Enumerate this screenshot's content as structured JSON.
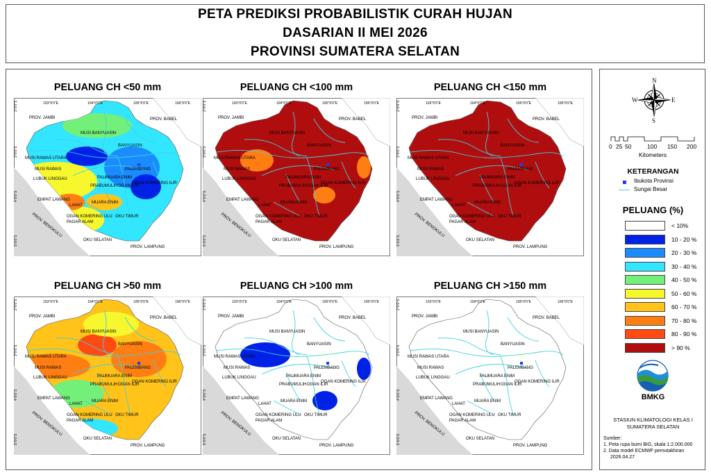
{
  "header": {
    "line1": "PETA PREDIKSI PROBABILISTIK CURAH HUJAN",
    "line2": "DASARIAN II MEI 2026",
    "line3": "PROVINSI SUMATERA SELATAN"
  },
  "map_labels": {
    "lon": [
      "103°0'0\"E",
      "104°0'0\"E",
      "105°0'0\"E",
      "106°0'0\"E"
    ],
    "lat": [
      "2°0'0\"S",
      "3°0'0\"S",
      "4°0'0\"S",
      "5°0'0\"S"
    ],
    "prov_jambi": "PROV. JAMBI",
    "prov_babel": "PROV. BABEL",
    "prov_bengkulu": "PROV. BENGKULU",
    "prov_lampung": "PROV. LAMPUNG",
    "musi_banyuasin": "MUSI BANYUASIN",
    "banyuasin": "BANYUASIN",
    "musi_rawas_utara": "MUSI RAWAS UTARA",
    "musi_rawas": "MUSI RAWAS",
    "palembang": "PALEMBANG",
    "lubuk_linggau": "LUBUK LINGGAU",
    "pali": "PALI",
    "muara_enim_top": "MUARA ENIM",
    "prabumulih": "PRABUMULIH",
    "ogan_ilir": "OGAN ILIR",
    "oki": "OGAN KOMERING ILIR",
    "empat_lawang": "EMPAT LAWANG",
    "lahat": "LAHAT",
    "muara_enim": "MUARA ENIM",
    "oku": "OGAN KOMERING ULU",
    "oku_timur": "OKU TIMUR",
    "pagar_alam": "PAGAR ALAM",
    "oku_selatan": "OKU SELATAN"
  },
  "panels": [
    {
      "title": "PELUANG CH <50 mm",
      "fill_class": "≈ 10-60 %"
    },
    {
      "title": "PELUANG CH <100 mm",
      "fill_class": "> 90 %"
    },
    {
      "title": "PELUANG CH <150 mm",
      "fill_class": "> 90 %"
    },
    {
      "title": "PELUANG CH >50 mm",
      "fill_class": "≈ 30-90 %"
    },
    {
      "title": "PELUANG CH >100 mm",
      "fill_class": "< 10 %"
    },
    {
      "title": "PELUANG CH >150 mm",
      "fill_class": "< 10 %"
    }
  ],
  "legend": {
    "compass": {
      "n": "N",
      "s": "S",
      "e": "E",
      "w": "W"
    },
    "scale_ticks": [
      "0",
      "25",
      "50",
      "100",
      "150",
      "200"
    ],
    "scale_unit": "Kilometers",
    "keterangan_title": "KETERANGAN",
    "ibukota": "Ibukota Provinsi",
    "sungai": "Sungai Besar",
    "peluang_title": "PELUANG (%)",
    "classes": [
      {
        "label": "< 10%",
        "color": "#ffffff"
      },
      {
        "label": "10 - 20 %",
        "color": "#0022e6"
      },
      {
        "label": "20 - 30 %",
        "color": "#1a8cff"
      },
      {
        "label": "30 - 40 %",
        "color": "#33e6ff"
      },
      {
        "label": "40 - 50 %",
        "color": "#73f07a"
      },
      {
        "label": "50 - 60 %",
        "color": "#f7f72e"
      },
      {
        "label": "60 - 70 %",
        "color": "#ffc31a"
      },
      {
        "label": "70 - 80 %",
        "color": "#ff7e14"
      },
      {
        "label": "80 - 90 %",
        "color": "#ff4a14"
      },
      {
        "label": "> 90 %",
        "color": "#b00e0e"
      }
    ],
    "bmkg_label": "BMKG",
    "station_line1": "STASIUN KLIMATOLOGI KELAS I",
    "station_line2": "SUMATERA SELATAN",
    "sumber_title": "Sumber:",
    "sumber_1": "1. Peta rupa bumi BIG, skala 1:2.000.000",
    "sumber_2": "2. Data model ECMWF pemutakhiran",
    "sumber_3": "2026.04.27"
  },
  "colors": {
    "river": "#3fd0e0",
    "sea_shade": "#d9d9d9",
    "capital": "#1a3cff"
  }
}
